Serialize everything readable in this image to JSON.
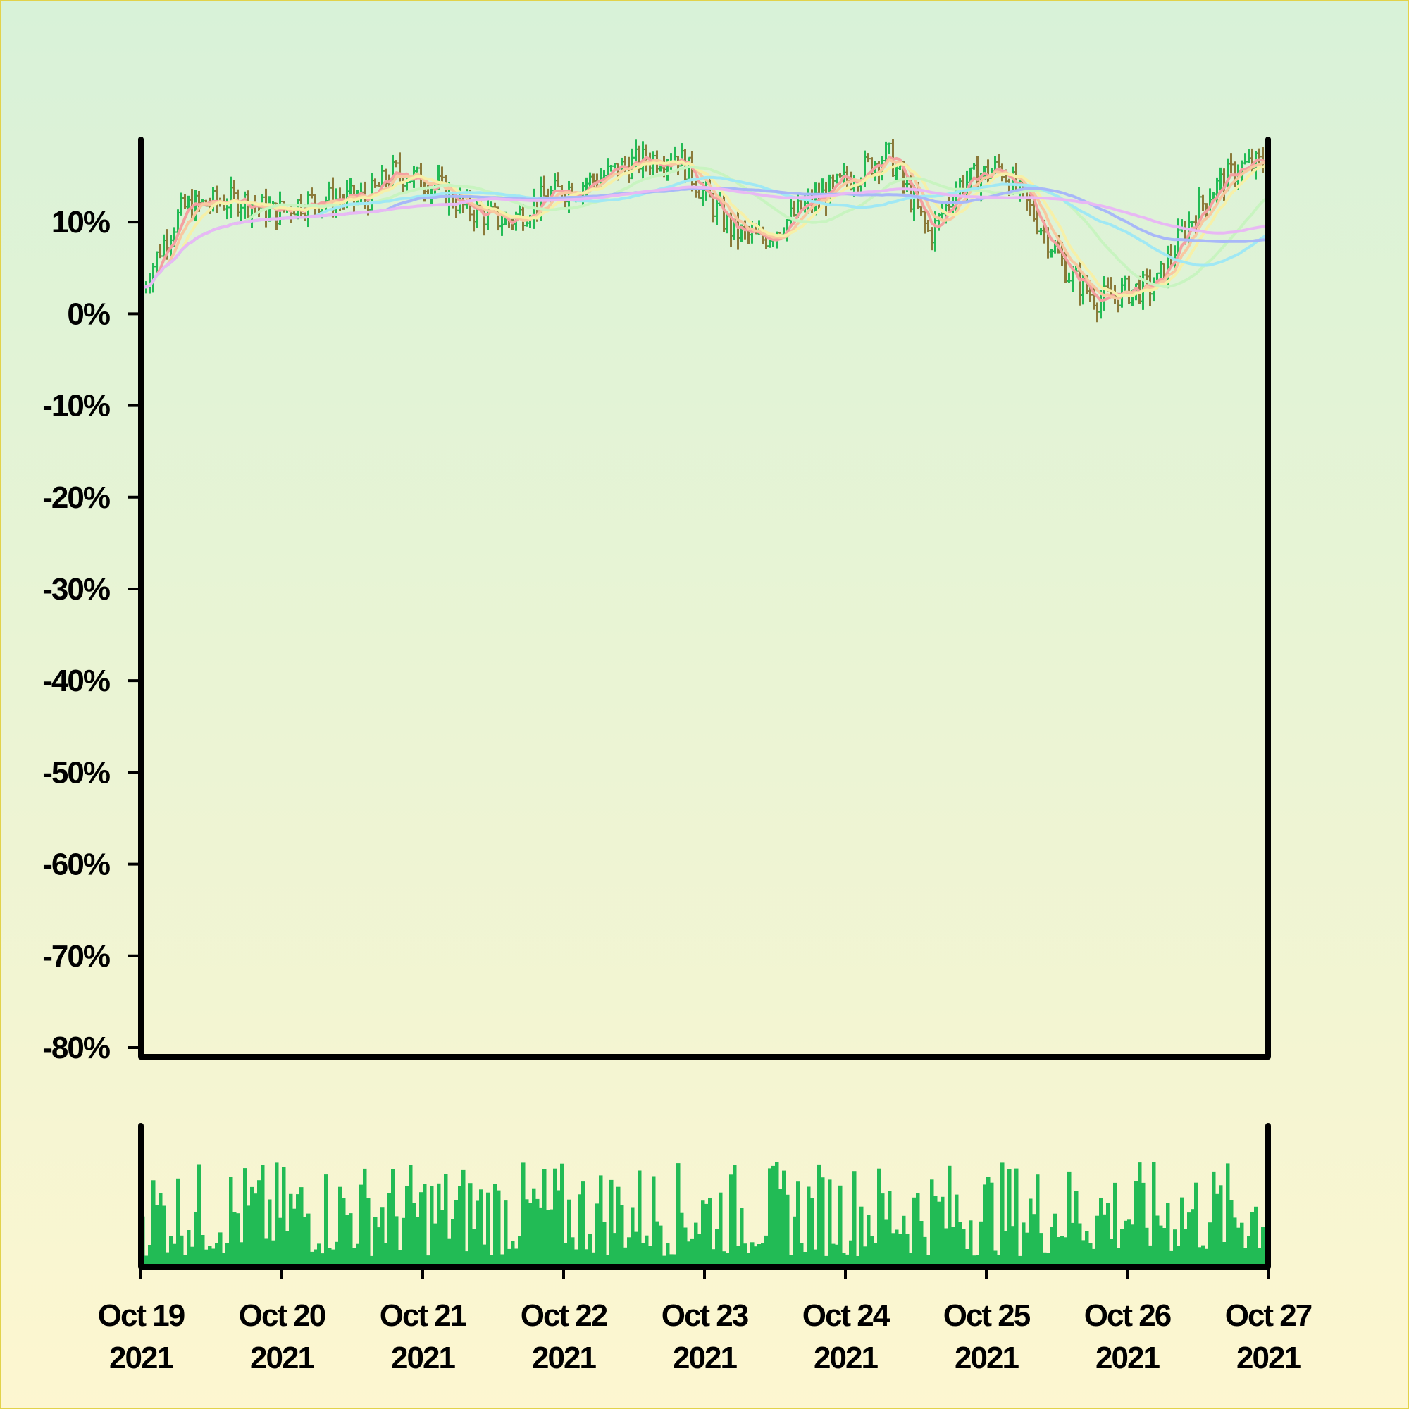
{
  "colors": {
    "background_top": "#d8f2d8",
    "background_bottom": "#fdf6d0",
    "border": "#e2d24a",
    "axis": "#000000",
    "up": "#22bb55",
    "down": "#8b7a3a",
    "volume": "#22bb55"
  },
  "chart_data": {
    "type": "ohlc",
    "title": "",
    "xlabel": "",
    "ylabel": "",
    "y_axis": {
      "unit": "%",
      "ylim": [
        -81,
        19
      ],
      "ticks": [
        10,
        0,
        -10,
        -20,
        -30,
        -40,
        -50,
        -60,
        -70,
        -80
      ],
      "tick_labels": [
        "10%",
        "0%",
        "-10%",
        "-20%",
        "-30%",
        "-40%",
        "-50%",
        "-60%",
        "-70%",
        "-80%"
      ]
    },
    "x_axis": {
      "range_days": [
        0,
        8
      ],
      "ticks": [
        {
          "line1": "Oct 19",
          "line2": "2021"
        },
        {
          "line1": "Oct 20",
          "line2": "2021"
        },
        {
          "line1": "Oct 21",
          "line2": "2021"
        },
        {
          "line1": "Oct 22",
          "line2": "2021"
        },
        {
          "line1": "Oct 23",
          "line2": "2021"
        },
        {
          "line1": "Oct 24",
          "line2": "2021"
        },
        {
          "line1": "Oct 25",
          "line2": "2021"
        },
        {
          "line1": "Oct 26",
          "line2": "2021"
        },
        {
          "line1": "Oct 27",
          "line2": "2021"
        }
      ]
    },
    "price_path_anchors": [
      [
        0.0,
        2.5
      ],
      [
        0.15,
        7.5
      ],
      [
        0.3,
        11.5
      ],
      [
        0.5,
        12.0
      ],
      [
        0.7,
        12.5
      ],
      [
        0.95,
        11.0
      ],
      [
        1.1,
        12.0
      ],
      [
        1.3,
        12.5
      ],
      [
        1.6,
        12.5
      ],
      [
        1.8,
        15.5
      ],
      [
        2.1,
        14.0
      ],
      [
        2.3,
        11.5
      ],
      [
        2.6,
        10.0
      ],
      [
        2.9,
        13.0
      ],
      [
        3.2,
        14.5
      ],
      [
        3.5,
        16.5
      ],
      [
        3.8,
        17.5
      ],
      [
        4.0,
        13.0
      ],
      [
        4.2,
        9.0
      ],
      [
        4.4,
        8.0
      ],
      [
        4.7,
        11.5
      ],
      [
        5.0,
        14.5
      ],
      [
        5.3,
        17.5
      ],
      [
        5.6,
        8.5
      ],
      [
        5.8,
        14.0
      ],
      [
        6.1,
        16.0
      ],
      [
        6.35,
        10.5
      ],
      [
        6.6,
        4.0
      ],
      [
        6.8,
        1.5
      ],
      [
        7.0,
        2.5
      ],
      [
        7.2,
        3.0
      ],
      [
        7.4,
        9.0
      ],
      [
        7.6,
        13.5
      ],
      [
        7.8,
        16.0
      ],
      [
        8.0,
        16.5
      ]
    ],
    "moving_averages": [
      {
        "color": "#f4a0a0",
        "window": 5
      },
      {
        "color": "#f8c8a0",
        "window": 8
      },
      {
        "color": "#f6f0a8",
        "window": 12
      },
      {
        "color": "#c8f4c0",
        "window": 30
      },
      {
        "color": "#a0e8f4",
        "window": 50
      },
      {
        "color": "#a8b8f8",
        "window": 70
      },
      {
        "color": "#e8b8f4",
        "window": 90
      }
    ],
    "bar_count": 320,
    "volume": {
      "has_bars": true,
      "bar_count": 320,
      "relative_max": 1.0
    },
    "grid": false,
    "legend": "none"
  }
}
